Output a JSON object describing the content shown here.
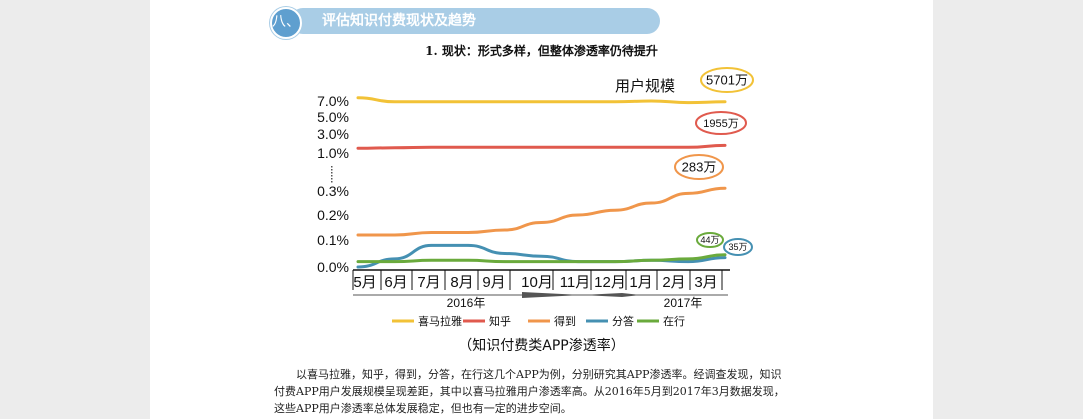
{
  "section": {
    "number": "八、",
    "title": "评估知识付费现状及趋势"
  },
  "subtitle": "1.  现状：形式多样，但整体渗透率仍待提升",
  "caption": "（知识付费类APP渗透率）",
  "paragraph": [
    "以喜马拉雅，知乎，得到，分答，在行这几个APP为例，分别研究其APP渗透率。经调查发现，知识",
    "付费APP用户发展规模呈现差距，其中以喜马拉雅用户渗透率高。从2016年5月到2017年3月数据发现，",
    "这些APP用户渗透率总体发展稳定，但也有一定的进步空间。"
  ],
  "colors": {
    "banner_bar": "#a9cde6",
    "banner_circle": "#5f9fcf",
    "喜马拉雅": "#f2c237",
    "知乎": "#e05a4e",
    "得到": "#f0964b",
    "分答": "#4590b2",
    "在行": "#6aaa3c"
  },
  "chart_data": {
    "type": "line",
    "title": "用户规模",
    "xlabel": "",
    "ylabel": "",
    "categories": [
      "5月",
      "6月",
      "7月",
      "8月",
      "9月",
      "10月",
      "11月",
      "12月",
      "1月",
      "2月",
      "3月"
    ],
    "year_labels": [
      "2016年",
      "2017年"
    ],
    "y_ticks": [
      "0.0%",
      "0.1%",
      "0.2%",
      "0.3%",
      "1.0%",
      "3.0%",
      "5.0%",
      "7.0%"
    ],
    "axis_break": "0.3% to 1.0%",
    "legend_position": "bottom",
    "grid": false,
    "series": [
      {
        "name": "喜马拉雅",
        "values": [
          7.4,
          6.9,
          6.9,
          6.9,
          6.9,
          6.9,
          6.9,
          6.9,
          7.0,
          6.8,
          6.9
        ],
        "end_label": "5701万"
      },
      {
        "name": "知乎",
        "values": [
          1.5,
          1.55,
          1.6,
          1.6,
          1.6,
          1.6,
          1.6,
          1.6,
          1.6,
          1.6,
          1.8
        ],
        "end_label": "1955万"
      },
      {
        "name": "得到",
        "values": [
          0.12,
          0.12,
          0.13,
          0.13,
          0.14,
          0.17,
          0.2,
          0.22,
          0.25,
          0.29,
          0.35
        ],
        "end_label": "283万"
      },
      {
        "name": "分答",
        "values": [
          0.0,
          0.03,
          0.08,
          0.08,
          0.05,
          0.04,
          0.02,
          0.02,
          0.025,
          0.02,
          0.035
        ],
        "end_label": "35万"
      },
      {
        "name": "在行",
        "values": [
          0.02,
          0.02,
          0.025,
          0.025,
          0.02,
          0.02,
          0.02,
          0.02,
          0.025,
          0.03,
          0.045
        ],
        "end_label": "44万"
      }
    ]
  }
}
